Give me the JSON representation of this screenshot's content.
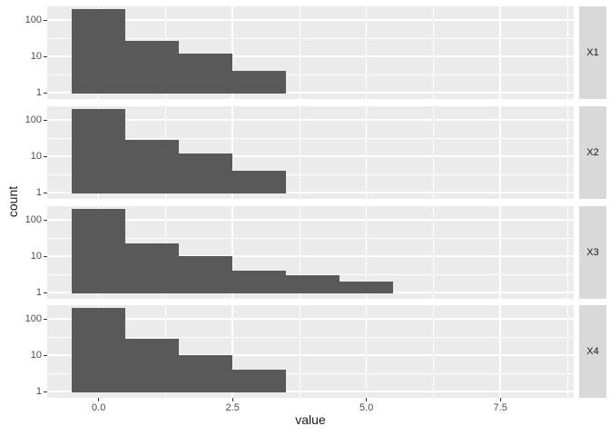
{
  "chart_data": {
    "type": "bar",
    "subtype": "faceted-histogram",
    "title": "",
    "xlabel": "value",
    "ylabel": "count",
    "x_tick_labels": [
      "0.0",
      "2.5",
      "5.0",
      "7.5"
    ],
    "x_tick_values": [
      0,
      2.5,
      5,
      7.5
    ],
    "x_minor_values": [
      1.25,
      3.75,
      6.25,
      8.75
    ],
    "x_range": [
      -0.96,
      8.87
    ],
    "binwidth": 1,
    "y_scale": "log10",
    "y_tick_labels": [
      "100",
      "10",
      "1"
    ],
    "y_tick_values": [
      100,
      10,
      1
    ],
    "y_minor_values": [
      31.62,
      3.162
    ],
    "grid": true,
    "legend": "none",
    "facet_position": "right",
    "facets": [
      {
        "label": "X1",
        "bin_centers": [
          0,
          1,
          2,
          3
        ],
        "counts": [
          195,
          27,
          12,
          4
        ]
      },
      {
        "label": "X2",
        "bin_centers": [
          0,
          1,
          2,
          3
        ],
        "counts": [
          195,
          28,
          12,
          4
        ]
      },
      {
        "label": "X3",
        "bin_centers": [
          0,
          1,
          2,
          3,
          4,
          5
        ],
        "counts": [
          200,
          22,
          10,
          4,
          3,
          2
        ]
      },
      {
        "label": "X4",
        "bin_centers": [
          0,
          1,
          2,
          3
        ],
        "counts": [
          200,
          28,
          10,
          4
        ]
      }
    ],
    "colors": {
      "bar_fill": "#595959",
      "panel_bg": "#EBEBEB",
      "gridline": "#FFFFFF",
      "strip_bg": "#D9D9D9",
      "strip_text": "#1A1A1A",
      "tick_text": "#4D4D4D",
      "tick_mark": "#333333",
      "axis_title": "#1A1A1A",
      "background": "#FFFFFF"
    }
  }
}
